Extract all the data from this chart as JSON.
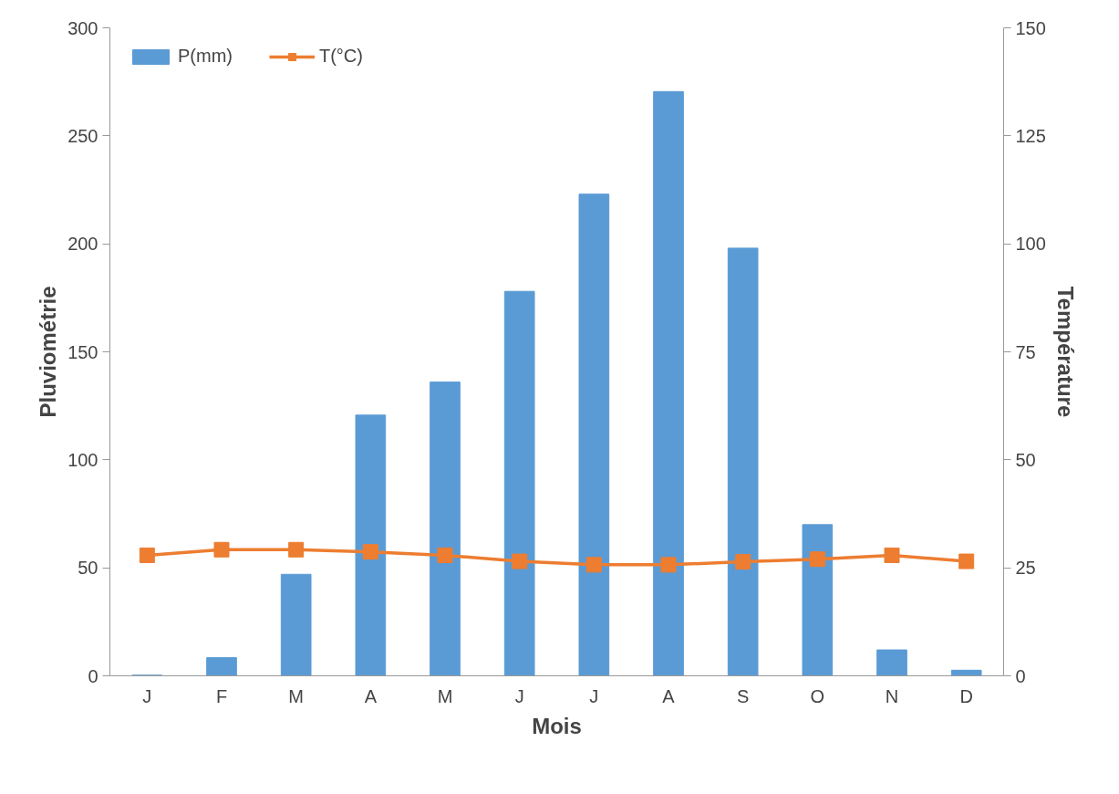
{
  "chart_data": {
    "type": "bar",
    "xlabel": "Mois",
    "ylabel": "Pluviométrie",
    "y2label": "Température",
    "categories": [
      "J",
      "F",
      "M",
      "A",
      "M",
      "J",
      "J",
      "A",
      "S",
      "O",
      "N",
      "D"
    ],
    "series": [
      {
        "name": "P(mm)",
        "color": "#5b9bd5",
        "values": [
          0.3,
          8.4,
          47,
          120.7,
          136,
          178,
          223,
          270.5,
          198,
          70,
          12,
          2.6
        ]
      },
      {
        "name": "T(°C)",
        "type": "line",
        "axis": "y2",
        "color": "#ed7d31",
        "marker": "square",
        "values": [
          27.9,
          29.2,
          29.2,
          28.7,
          27.9,
          26.5,
          25.7,
          25.7,
          26.4,
          27.0,
          27.9,
          26.5
        ]
      }
    ],
    "ylim": [
      0,
      300
    ],
    "yticks": [
      0,
      50,
      100,
      150,
      200,
      250,
      300
    ],
    "y2lim": [
      0,
      150
    ],
    "y2ticks": [
      0,
      25,
      50,
      75,
      100,
      125,
      150
    ],
    "grid": false,
    "legend": "top left"
  }
}
